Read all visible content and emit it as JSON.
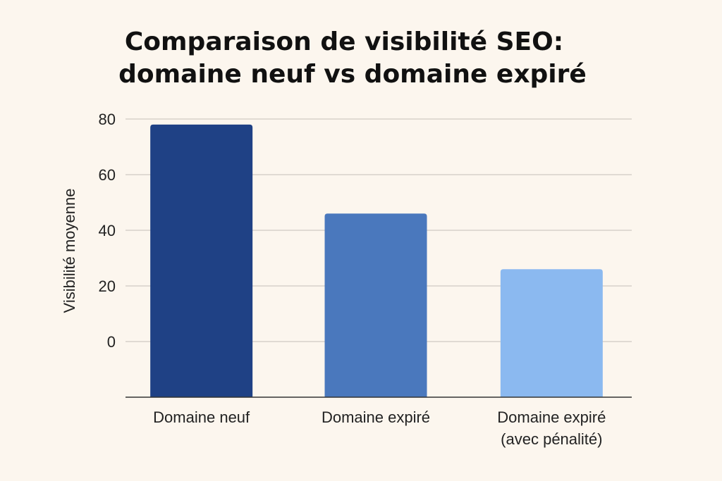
{
  "chart_data": {
    "type": "bar",
    "title_lines": [
      "Comparaison de visibilité SEO:",
      "domaine neuf vs domaine expiré"
    ],
    "ylabel": "Visibilité moyenne",
    "xlabel": "",
    "ylim": [
      -20,
      80
    ],
    "yticks": [
      80,
      60,
      40,
      20,
      0
    ],
    "grid": true,
    "categories": [
      [
        "Domaine neuf"
      ],
      [
        "Domaine expiré"
      ],
      [
        "Domaine expiré",
        "(avec pénalité)"
      ]
    ],
    "values": [
      78,
      46,
      26
    ],
    "colors": [
      "#1f4185",
      "#4a78bd",
      "#8bb9f0"
    ]
  }
}
